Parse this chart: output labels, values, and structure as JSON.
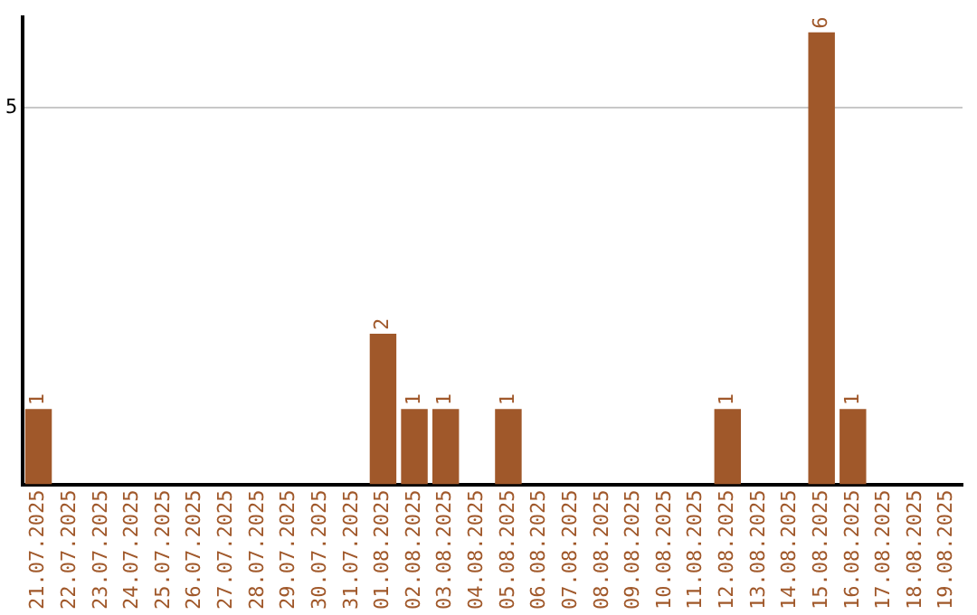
{
  "chart_data": {
    "type": "bar",
    "categories": [
      "21.07.2025",
      "22.07.2025",
      "23.07.2025",
      "24.07.2025",
      "25.07.2025",
      "26.07.2025",
      "27.07.2025",
      "28.07.2025",
      "29.07.2025",
      "30.07.2025",
      "31.07.2025",
      "01.08.2025",
      "02.08.2025",
      "03.08.2025",
      "04.08.2025",
      "05.08.2025",
      "06.08.2025",
      "07.08.2025",
      "08.08.2025",
      "09.08.2025",
      "10.08.2025",
      "11.08.2025",
      "12.08.2025",
      "13.08.2025",
      "14.08.2025",
      "15.08.2025",
      "16.08.2025",
      "17.08.2025",
      "18.08.2025",
      "19.08.2025"
    ],
    "values": [
      1,
      0,
      0,
      0,
      0,
      0,
      0,
      0,
      0,
      0,
      0,
      2,
      1,
      1,
      0,
      1,
      0,
      0,
      0,
      0,
      0,
      0,
      1,
      0,
      0,
      6,
      1,
      0,
      0,
      0
    ],
    "value_labels": [
      "1",
      null,
      null,
      null,
      null,
      null,
      null,
      null,
      null,
      null,
      null,
      "2",
      "1",
      "1",
      null,
      "1",
      null,
      null,
      null,
      null,
      null,
      null,
      "1",
      null,
      null,
      "6",
      "1",
      null,
      null,
      null
    ],
    "color": "#a0582a",
    "ylim": [
      0,
      6.2
    ],
    "yticks": [
      5
    ],
    "grid": "y",
    "legend": false
  }
}
